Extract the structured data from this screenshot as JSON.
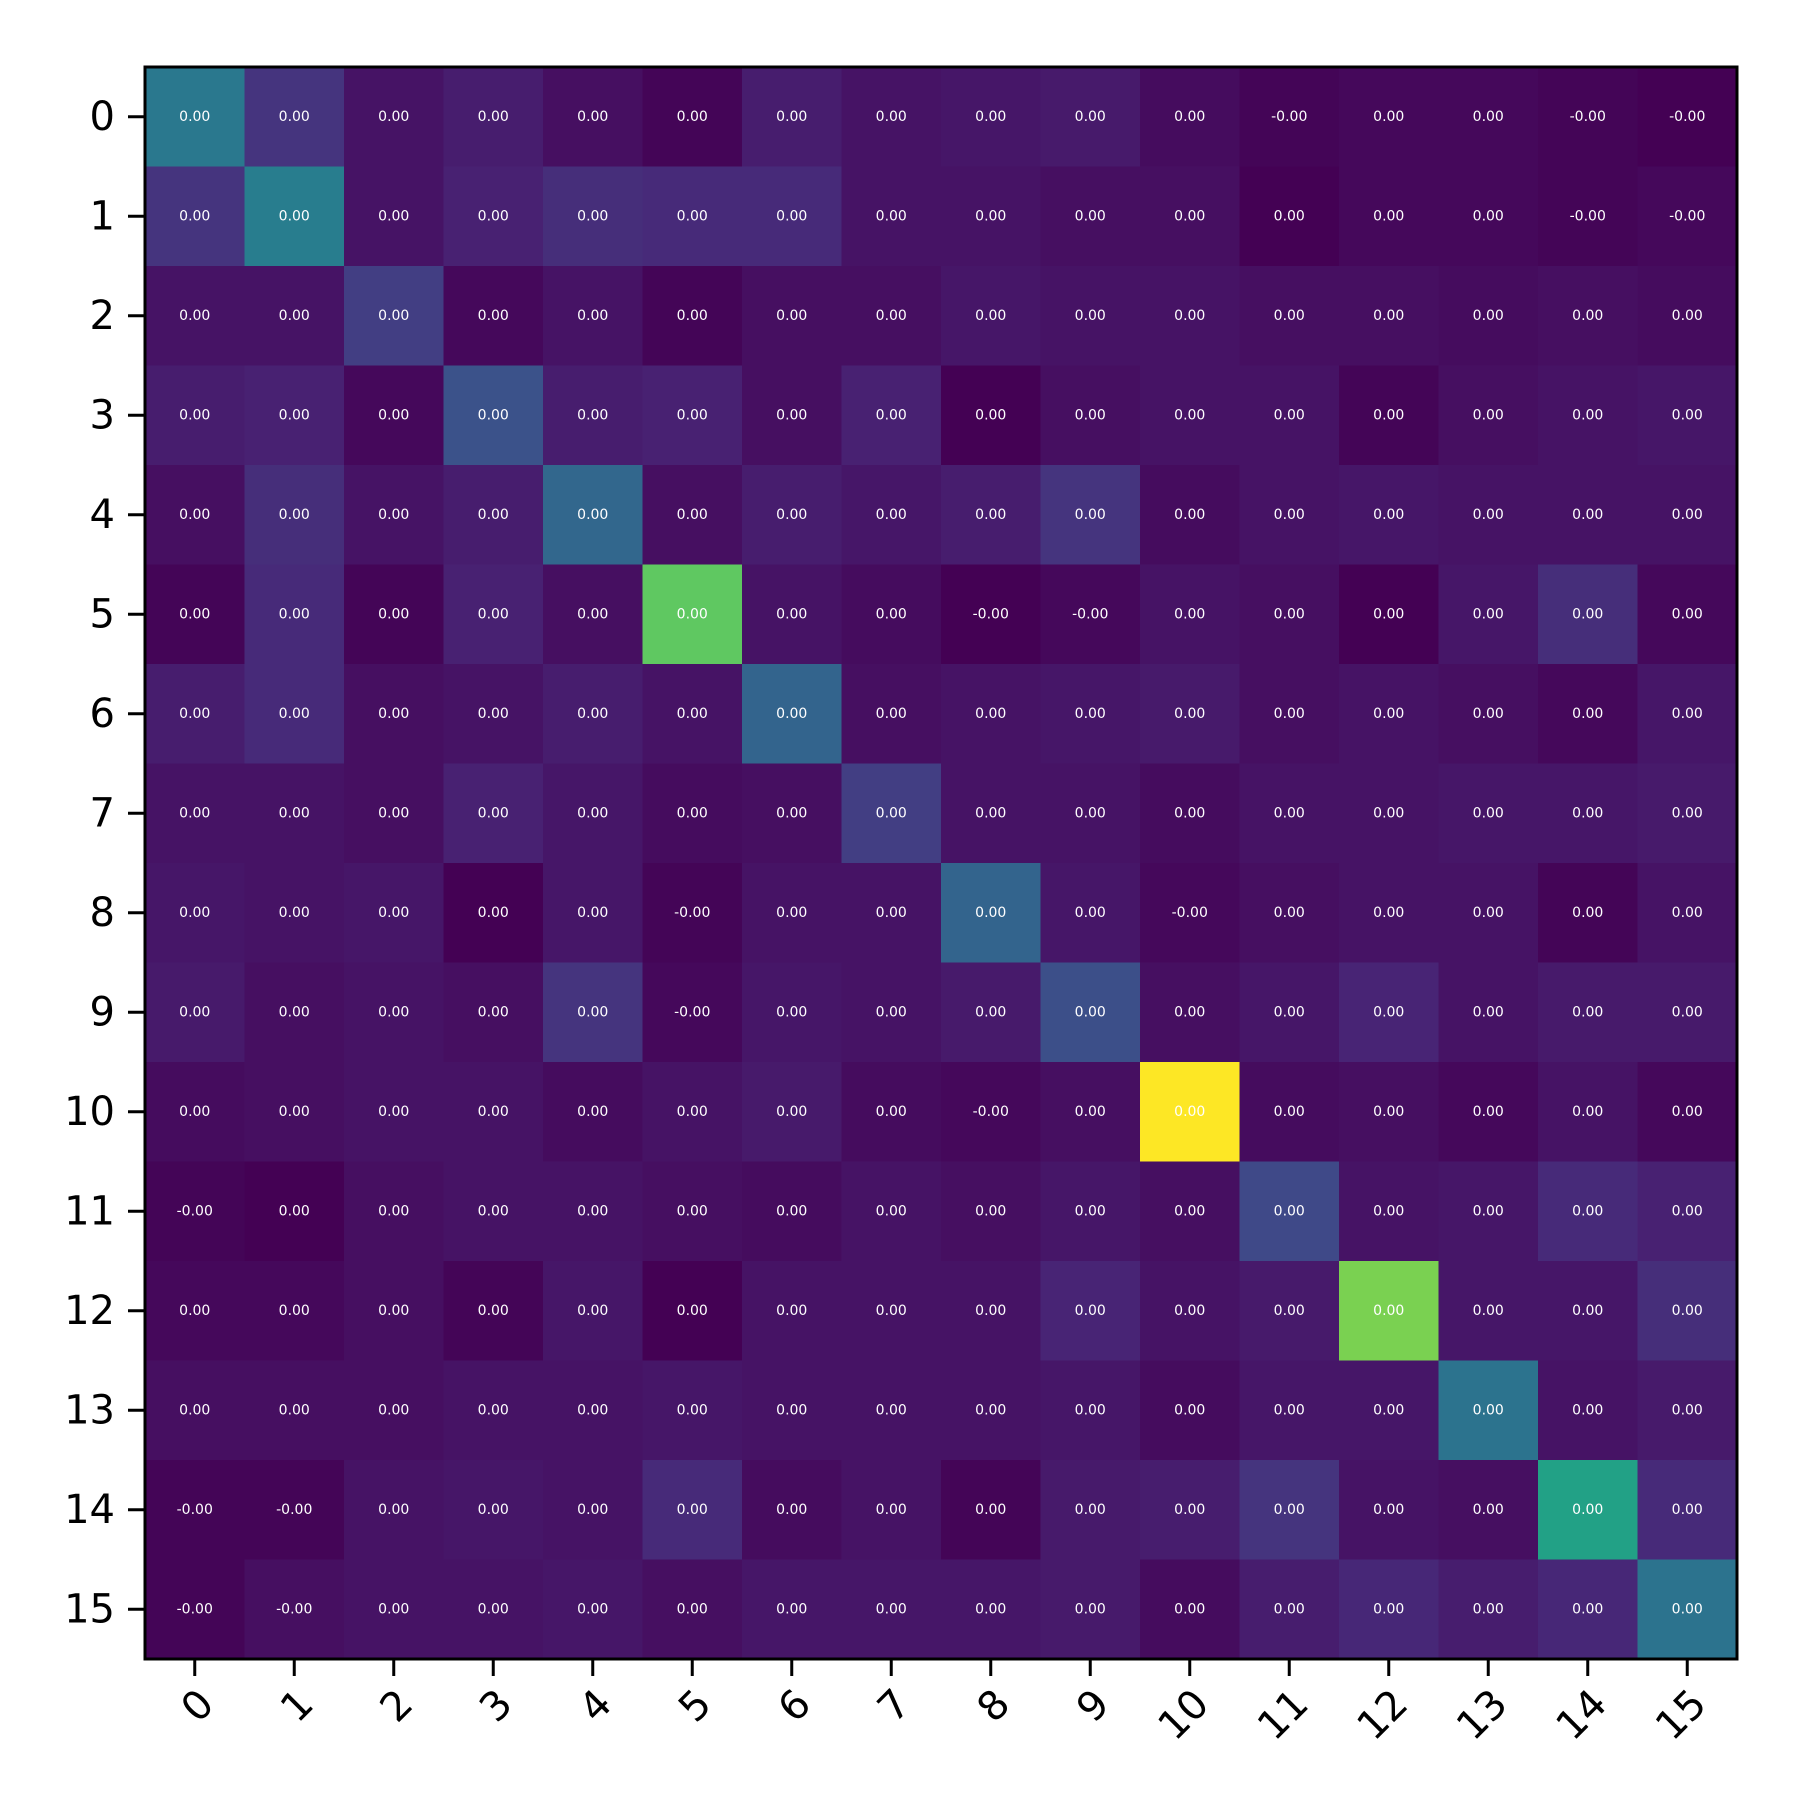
{
  "chart_data": {
    "type": "heatmap",
    "colormap": "viridis",
    "x_categories": [
      "0",
      "1",
      "2",
      "3",
      "4",
      "5",
      "6",
      "7",
      "8",
      "9",
      "10",
      "11",
      "12",
      "13",
      "14",
      "15"
    ],
    "y_categories": [
      "0",
      "1",
      "2",
      "3",
      "4",
      "5",
      "6",
      "7",
      "8",
      "9",
      "10",
      "11",
      "12",
      "13",
      "14",
      "15"
    ],
    "x_tick_rotation_deg": 45,
    "grid": false,
    "values": [
      [
        0.4,
        0.15,
        0.05,
        0.08,
        0.04,
        0.01,
        0.08,
        0.05,
        0.06,
        0.07,
        0.03,
        0.01,
        0.02,
        0.02,
        0.01,
        0.0
      ],
      [
        0.15,
        0.42,
        0.05,
        0.09,
        0.13,
        0.12,
        0.12,
        0.05,
        0.05,
        0.04,
        0.04,
        0.0,
        0.02,
        0.02,
        0.01,
        0.02
      ],
      [
        0.05,
        0.05,
        0.18,
        0.02,
        0.05,
        0.01,
        0.04,
        0.04,
        0.06,
        0.05,
        0.05,
        0.04,
        0.04,
        0.03,
        0.04,
        0.03
      ],
      [
        0.08,
        0.09,
        0.02,
        0.25,
        0.08,
        0.09,
        0.04,
        0.09,
        0.0,
        0.04,
        0.05,
        0.05,
        0.01,
        0.04,
        0.05,
        0.06
      ],
      [
        0.04,
        0.13,
        0.05,
        0.08,
        0.33,
        0.04,
        0.08,
        0.06,
        0.08,
        0.15,
        0.03,
        0.05,
        0.06,
        0.05,
        0.05,
        0.05
      ],
      [
        0.01,
        0.12,
        0.01,
        0.09,
        0.04,
        0.75,
        0.05,
        0.03,
        0.0,
        0.02,
        0.05,
        0.04,
        0.0,
        0.06,
        0.13,
        0.02
      ],
      [
        0.08,
        0.12,
        0.04,
        0.05,
        0.08,
        0.05,
        0.32,
        0.04,
        0.05,
        0.06,
        0.07,
        0.04,
        0.05,
        0.04,
        0.02,
        0.06
      ],
      [
        0.05,
        0.05,
        0.04,
        0.09,
        0.06,
        0.03,
        0.04,
        0.18,
        0.05,
        0.05,
        0.03,
        0.05,
        0.05,
        0.06,
        0.06,
        0.07
      ],
      [
        0.06,
        0.05,
        0.06,
        0.0,
        0.06,
        0.01,
        0.05,
        0.05,
        0.32,
        0.06,
        0.02,
        0.04,
        0.05,
        0.05,
        0.01,
        0.05
      ],
      [
        0.07,
        0.04,
        0.05,
        0.04,
        0.15,
        0.02,
        0.06,
        0.05,
        0.07,
        0.24,
        0.04,
        0.06,
        0.1,
        0.05,
        0.07,
        0.07
      ],
      [
        0.03,
        0.04,
        0.05,
        0.05,
        0.03,
        0.05,
        0.07,
        0.03,
        0.02,
        0.04,
        1.0,
        0.03,
        0.04,
        0.02,
        0.05,
        0.02
      ],
      [
        0.01,
        0.0,
        0.04,
        0.05,
        0.05,
        0.04,
        0.03,
        0.05,
        0.04,
        0.06,
        0.04,
        0.22,
        0.05,
        0.06,
        0.12,
        0.09
      ],
      [
        0.02,
        0.02,
        0.04,
        0.01,
        0.06,
        0.0,
        0.05,
        0.05,
        0.05,
        0.1,
        0.05,
        0.07,
        0.8,
        0.06,
        0.06,
        0.13
      ],
      [
        0.04,
        0.04,
        0.04,
        0.05,
        0.05,
        0.06,
        0.05,
        0.05,
        0.05,
        0.06,
        0.03,
        0.06,
        0.06,
        0.38,
        0.05,
        0.07
      ],
      [
        0.01,
        0.01,
        0.05,
        0.06,
        0.05,
        0.12,
        0.03,
        0.05,
        0.01,
        0.07,
        0.08,
        0.15,
        0.05,
        0.04,
        0.57,
        0.12
      ],
      [
        0.01,
        0.04,
        0.05,
        0.05,
        0.06,
        0.04,
        0.06,
        0.06,
        0.06,
        0.07,
        0.03,
        0.08,
        0.11,
        0.08,
        0.11,
        0.38
      ]
    ],
    "labels": [
      [
        "0.00",
        "0.00",
        "0.00",
        "0.00",
        "0.00",
        "0.00",
        "0.00",
        "0.00",
        "0.00",
        "0.00",
        "0.00",
        "-0.00",
        "0.00",
        "0.00",
        "-0.00",
        "-0.00"
      ],
      [
        "0.00",
        "0.00",
        "0.00",
        "0.00",
        "0.00",
        "0.00",
        "0.00",
        "0.00",
        "0.00",
        "0.00",
        "0.00",
        "0.00",
        "0.00",
        "0.00",
        "-0.00",
        "-0.00"
      ],
      [
        "0.00",
        "0.00",
        "0.00",
        "0.00",
        "0.00",
        "0.00",
        "0.00",
        "0.00",
        "0.00",
        "0.00",
        "0.00",
        "0.00",
        "0.00",
        "0.00",
        "0.00",
        "0.00"
      ],
      [
        "0.00",
        "0.00",
        "0.00",
        "0.00",
        "0.00",
        "0.00",
        "0.00",
        "0.00",
        "0.00",
        "0.00",
        "0.00",
        "0.00",
        "0.00",
        "0.00",
        "0.00",
        "0.00"
      ],
      [
        "0.00",
        "0.00",
        "0.00",
        "0.00",
        "0.00",
        "0.00",
        "0.00",
        "0.00",
        "0.00",
        "0.00",
        "0.00",
        "0.00",
        "0.00",
        "0.00",
        "0.00",
        "0.00"
      ],
      [
        "0.00",
        "0.00",
        "0.00",
        "0.00",
        "0.00",
        "0.00",
        "0.00",
        "0.00",
        "-0.00",
        "-0.00",
        "0.00",
        "0.00",
        "0.00",
        "0.00",
        "0.00",
        "0.00"
      ],
      [
        "0.00",
        "0.00",
        "0.00",
        "0.00",
        "0.00",
        "0.00",
        "0.00",
        "0.00",
        "0.00",
        "0.00",
        "0.00",
        "0.00",
        "0.00",
        "0.00",
        "0.00",
        "0.00"
      ],
      [
        "0.00",
        "0.00",
        "0.00",
        "0.00",
        "0.00",
        "0.00",
        "0.00",
        "0.00",
        "0.00",
        "0.00",
        "0.00",
        "0.00",
        "0.00",
        "0.00",
        "0.00",
        "0.00"
      ],
      [
        "0.00",
        "0.00",
        "0.00",
        "0.00",
        "0.00",
        "-0.00",
        "0.00",
        "0.00",
        "0.00",
        "0.00",
        "-0.00",
        "0.00",
        "0.00",
        "0.00",
        "0.00",
        "0.00"
      ],
      [
        "0.00",
        "0.00",
        "0.00",
        "0.00",
        "0.00",
        "-0.00",
        "0.00",
        "0.00",
        "0.00",
        "0.00",
        "0.00",
        "0.00",
        "0.00",
        "0.00",
        "0.00",
        "0.00"
      ],
      [
        "0.00",
        "0.00",
        "0.00",
        "0.00",
        "0.00",
        "0.00",
        "0.00",
        "0.00",
        "-0.00",
        "0.00",
        "0.00",
        "0.00",
        "0.00",
        "0.00",
        "0.00",
        "0.00"
      ],
      [
        "-0.00",
        "0.00",
        "0.00",
        "0.00",
        "0.00",
        "0.00",
        "0.00",
        "0.00",
        "0.00",
        "0.00",
        "0.00",
        "0.00",
        "0.00",
        "0.00",
        "0.00",
        "0.00"
      ],
      [
        "0.00",
        "0.00",
        "0.00",
        "0.00",
        "0.00",
        "0.00",
        "0.00",
        "0.00",
        "0.00",
        "0.00",
        "0.00",
        "0.00",
        "0.00",
        "0.00",
        "0.00",
        "0.00"
      ],
      [
        "0.00",
        "0.00",
        "0.00",
        "0.00",
        "0.00",
        "0.00",
        "0.00",
        "0.00",
        "0.00",
        "0.00",
        "0.00",
        "0.00",
        "0.00",
        "0.00",
        "0.00",
        "0.00"
      ],
      [
        "-0.00",
        "-0.00",
        "0.00",
        "0.00",
        "0.00",
        "0.00",
        "0.00",
        "0.00",
        "0.00",
        "0.00",
        "0.00",
        "0.00",
        "0.00",
        "0.00",
        "0.00",
        "0.00"
      ],
      [
        "-0.00",
        "-0.00",
        "0.00",
        "0.00",
        "0.00",
        "0.00",
        "0.00",
        "0.00",
        "0.00",
        "0.00",
        "0.00",
        "0.00",
        "0.00",
        "0.00",
        "0.00",
        "0.00"
      ]
    ]
  }
}
